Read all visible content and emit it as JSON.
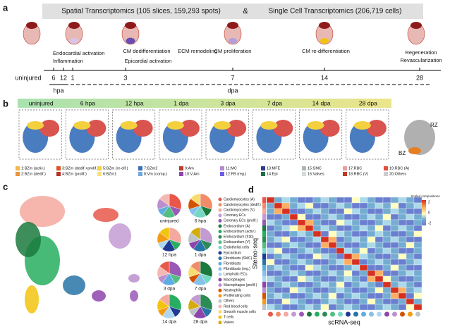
{
  "panel_a": {
    "label": "a",
    "banner": {
      "left": "Spatial Transcriptomics  (105 slices, 159,293 spots)",
      "amp": "&",
      "right": "Single Cell Transcriptomics (206,719 cells)"
    },
    "events": [
      "Endocardial activation",
      "Inflammation",
      "CM dedifferentiation",
      "Epicardial activation",
      "ECM remodeling",
      "CM proliferation",
      "CM re-differentiation",
      "Regeneration",
      "Revascularization"
    ],
    "ticks": [
      "uninjured",
      "6",
      "12",
      "1",
      "3",
      "7",
      "14",
      "28"
    ],
    "units": [
      "hpa",
      "dpa"
    ]
  },
  "panel_b": {
    "label": "b",
    "stages": [
      "uninjured",
      "6 hpa",
      "12 hpa",
      "1 dpa",
      "3 dpa",
      "7 dpa",
      "14 dpa",
      "28 dpa"
    ],
    "zones": [
      "RZ",
      "BZ"
    ],
    "legend": [
      {
        "name": "1:BZm (activ.)",
        "color": "#f2b84b"
      },
      {
        "name": "2:BZm (dedif.)",
        "color": "#e8963c"
      },
      {
        "name": "3:BZm (dedif.+prolif.)",
        "color": "#d9541e"
      },
      {
        "name": "4:BZm (prolif.)",
        "color": "#b8322a"
      },
      {
        "name": "5:BZm (re-dif.)",
        "color": "#f4d03f"
      },
      {
        "name": "6:BZm1",
        "color": "#f7e27a"
      },
      {
        "name": "7:BZm2",
        "color": "#3a6fb5"
      },
      {
        "name": "8:Vm (comp.)",
        "color": "#6fa8dc"
      },
      {
        "name": "9:Am",
        "color": "#c0392b"
      },
      {
        "name": "10:V.Am",
        "color": "#8e44ad"
      },
      {
        "name": "11:MC",
        "color": "#b58bd1"
      },
      {
        "name": "12:FB (reg.)",
        "color": "#6c5ce7"
      },
      {
        "name": "13:MFE",
        "color": "#2c3e8f"
      },
      {
        "name": "14:Epi",
        "color": "#1f6f4a"
      },
      {
        "name": "15:SMC",
        "color": "#aab7b8"
      },
      {
        "name": "16:Valves",
        "color": "#d5dbdb"
      },
      {
        "name": "17:RBC",
        "color": "#e6a0a0"
      },
      {
        "name": "18:RBC (V)",
        "color": "#c0392b"
      },
      {
        "name": "19:RBC (A)",
        "color": "#e74c3c"
      },
      {
        "name": "20:Others",
        "color": "#cccccc"
      }
    ]
  },
  "panel_c": {
    "label": "c",
    "pies": [
      "uninjured",
      "6 hpa",
      "12 hpa",
      "1 dpa",
      "3 dpa",
      "7 dpa",
      "14 dpa",
      "28 dpa"
    ],
    "legend": [
      {
        "name": "Cardiomyocytes (A)",
        "color": "#e8574a"
      },
      {
        "name": "Cardiomyocytes (dedif.)",
        "color": "#f08c6a"
      },
      {
        "name": "Cardiomyocytes (V)",
        "color": "#f4a9a0"
      },
      {
        "name": "Coronary ECs",
        "color": "#c39bd3"
      },
      {
        "name": "Coronary ECs (prolif.)",
        "color": "#9b59b6"
      },
      {
        "name": "Endocardium (A)",
        "color": "#1b7a3e"
      },
      {
        "name": "Endocardium (activ.)",
        "color": "#27ae60"
      },
      {
        "name": "Endocardium (frzb)",
        "color": "#2e8b57"
      },
      {
        "name": "Endocardium (V)",
        "color": "#52be80"
      },
      {
        "name": "Endothelial cells",
        "color": "#76d7c4"
      },
      {
        "name": "Epicardium",
        "color": "#1f3a93"
      },
      {
        "name": "Fibroblasts (SMC)",
        "color": "#2874a6"
      },
      {
        "name": "Fibroblasts",
        "color": "#5dade2"
      },
      {
        "name": "Fibroblasts (reg.)",
        "color": "#85c1e9"
      },
      {
        "name": "Lymphatic ECs",
        "color": "#aed6f1"
      },
      {
        "name": "Macrophages",
        "color": "#8e44ad"
      },
      {
        "name": "Macrophages (prolif.)",
        "color": "#bb8fce"
      },
      {
        "name": "Neutrophils",
        "color": "#d35400"
      },
      {
        "name": "Proliferating cells",
        "color": "#f39c12"
      },
      {
        "name": "Others",
        "color": "#bdc3c7"
      },
      {
        "name": "Red blood cells",
        "color": "#f5b7b1"
      },
      {
        "name": "Smooth muscle cells",
        "color": "#f7dc6f"
      },
      {
        "name": "T cells",
        "color": "#f1c40f"
      },
      {
        "name": "Valves",
        "color": "#d4ac0d"
      }
    ]
  },
  "panel_d": {
    "label": "d",
    "y_label": "Stereo-seq",
    "x_label": "scRNA-seq",
    "colorbar_title": "Scaled compositions",
    "colorbar_ticks": [
      "2",
      "0",
      "-2"
    ]
  }
}
